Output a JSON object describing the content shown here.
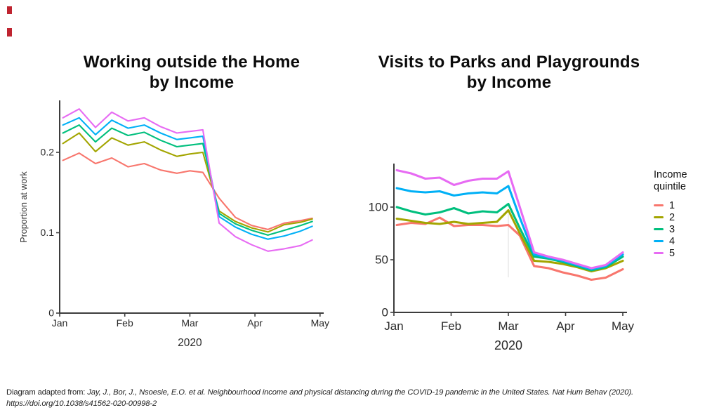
{
  "page": {
    "background": "#ffffff"
  },
  "decoration": {
    "corner_marks_color": "#bf2430"
  },
  "chart_data": [
    {
      "type": "line",
      "title": "Working outside the Home\nby Income",
      "xlabel": "2020",
      "ylabel": "Proportion at work",
      "categories": [
        "Jan",
        "Feb",
        "Mar",
        "Apr",
        "May"
      ],
      "ytick_values": [
        0,
        0.1,
        0.2
      ],
      "ytick_labels": [
        "0",
        "0.1",
        "0.2"
      ],
      "ylim": [
        0,
        0.265
      ],
      "grid": false,
      "x_months": [
        0.05,
        0.3,
        0.55,
        0.8,
        1.05,
        1.3,
        1.55,
        1.8,
        2.0,
        2.2,
        2.45,
        2.7,
        2.95,
        3.2,
        3.45,
        3.7,
        3.88
      ],
      "series": [
        {
          "name": "1",
          "color": "#F8766D",
          "values": [
            0.19,
            0.199,
            0.186,
            0.193,
            0.182,
            0.186,
            0.178,
            0.174,
            0.177,
            0.175,
            0.143,
            0.119,
            0.109,
            0.104,
            0.112,
            0.115,
            0.118
          ]
        },
        {
          "name": "2",
          "color": "#A3A500",
          "values": [
            0.211,
            0.224,
            0.201,
            0.218,
            0.209,
            0.213,
            0.203,
            0.195,
            0.198,
            0.2,
            0.127,
            0.114,
            0.106,
            0.101,
            0.11,
            0.113,
            0.117
          ]
        },
        {
          "name": "3",
          "color": "#00BF7D",
          "values": [
            0.224,
            0.234,
            0.213,
            0.23,
            0.221,
            0.225,
            0.215,
            0.207,
            0.209,
            0.211,
            0.124,
            0.111,
            0.103,
            0.097,
            0.103,
            0.109,
            0.114
          ]
        },
        {
          "name": "4",
          "color": "#00B0F6",
          "values": [
            0.234,
            0.243,
            0.222,
            0.24,
            0.23,
            0.234,
            0.224,
            0.216,
            0.218,
            0.22,
            0.12,
            0.107,
            0.098,
            0.092,
            0.096,
            0.102,
            0.108
          ]
        },
        {
          "name": "5",
          "color": "#E76BF3",
          "values": [
            0.243,
            0.254,
            0.231,
            0.25,
            0.239,
            0.243,
            0.232,
            0.224,
            0.226,
            0.228,
            0.112,
            0.095,
            0.085,
            0.077,
            0.08,
            0.084,
            0.091
          ]
        }
      ]
    },
    {
      "type": "line",
      "title": "Visits to Parks and Playgrounds\nby Income",
      "xlabel": "2020",
      "ylabel": "",
      "categories": [
        "Jan",
        "Feb",
        "Mar",
        "Apr",
        "May"
      ],
      "ytick_values": [
        0,
        50,
        100
      ],
      "ytick_labels": [
        "0",
        "50",
        "100"
      ],
      "ylim": [
        0,
        141
      ],
      "grid": false,
      "legend_position": "right",
      "x_months": [
        0.05,
        0.3,
        0.55,
        0.8,
        1.05,
        1.3,
        1.55,
        1.8,
        2.0,
        2.2,
        2.45,
        2.7,
        2.95,
        3.2,
        3.45,
        3.7,
        4.0
      ],
      "series": [
        {
          "name": "1",
          "color": "#F8766D",
          "values": [
            83,
            85,
            84,
            90,
            82,
            83,
            83,
            82,
            83,
            73,
            44,
            42,
            38,
            35,
            31,
            33,
            41
          ]
        },
        {
          "name": "2",
          "color": "#A3A500",
          "values": [
            89,
            87,
            85,
            84,
            86,
            84,
            85,
            86,
            97,
            75,
            49,
            48,
            46,
            43,
            39,
            42,
            49
          ]
        },
        {
          "name": "3",
          "color": "#00BF7D",
          "values": [
            100,
            96,
            93,
            95,
            99,
            94,
            96,
            95,
            103,
            80,
            53,
            51,
            48,
            44,
            40,
            43,
            53
          ]
        },
        {
          "name": "4",
          "color": "#00B0F6",
          "values": [
            118,
            115,
            114,
            115,
            111,
            113,
            114,
            113,
            120,
            90,
            55,
            52,
            49,
            45,
            41,
            44,
            55
          ]
        },
        {
          "name": "5",
          "color": "#E76BF3",
          "values": [
            135,
            132,
            127,
            128,
            121,
            125,
            127,
            127,
            134,
            100,
            57,
            53,
            50,
            46,
            42,
            45,
            57
          ]
        }
      ]
    }
  ],
  "legend": {
    "title": "Income\nquintile",
    "items": [
      {
        "label": "1",
        "color": "#F8766D"
      },
      {
        "label": "2",
        "color": "#A3A500"
      },
      {
        "label": "3",
        "color": "#00BF7D"
      },
      {
        "label": "4",
        "color": "#00B0F6"
      },
      {
        "label": "5",
        "color": "#E76BF3"
      }
    ]
  },
  "caption": {
    "prefix": "Diagram adapted from: ",
    "citation": "Jay, J., Bor, J., Nsoesie, E.O. et al. Neighbourhood income and physical distancing during the COVID-19 pandemic in the United States. Nat Hum Behav (2020).",
    "doi": "https://doi.org/10.1038/s41562-020-00998-2"
  }
}
